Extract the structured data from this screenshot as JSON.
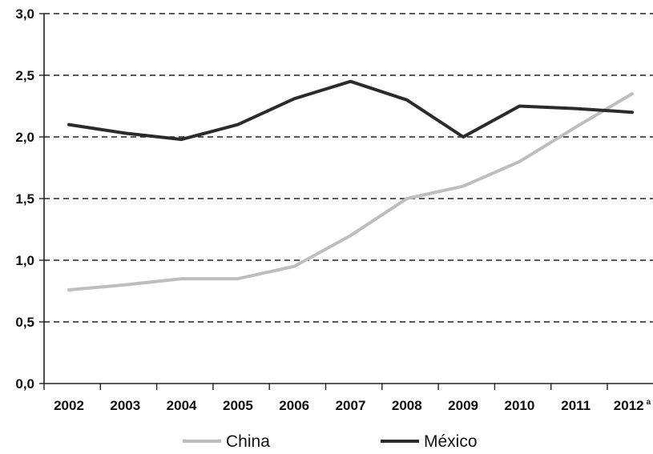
{
  "chart_data": {
    "type": "line",
    "categories": [
      "2002",
      "2003",
      "2004",
      "2005",
      "2006",
      "2007",
      "2008",
      "2009",
      "2010",
      "2011",
      "2012"
    ],
    "last_category_note": "a",
    "y_ticks": [
      "0,0",
      "0,5",
      "1,0",
      "1,5",
      "2,0",
      "2,5",
      "3,0"
    ],
    "ylim": [
      0,
      3
    ],
    "grid": "dashed horizontal",
    "legend_position": "bottom",
    "series": [
      {
        "name": "China",
        "color": "#bdbdbd",
        "values": [
          0.76,
          0.8,
          0.85,
          0.85,
          0.95,
          1.2,
          1.5,
          1.6,
          1.8,
          2.08,
          2.35
        ]
      },
      {
        "name": "México",
        "color": "#2b2b2b",
        "values": [
          2.1,
          2.03,
          1.98,
          2.1,
          2.31,
          2.45,
          2.3,
          2.0,
          2.25,
          2.23,
          2.2
        ]
      }
    ]
  }
}
